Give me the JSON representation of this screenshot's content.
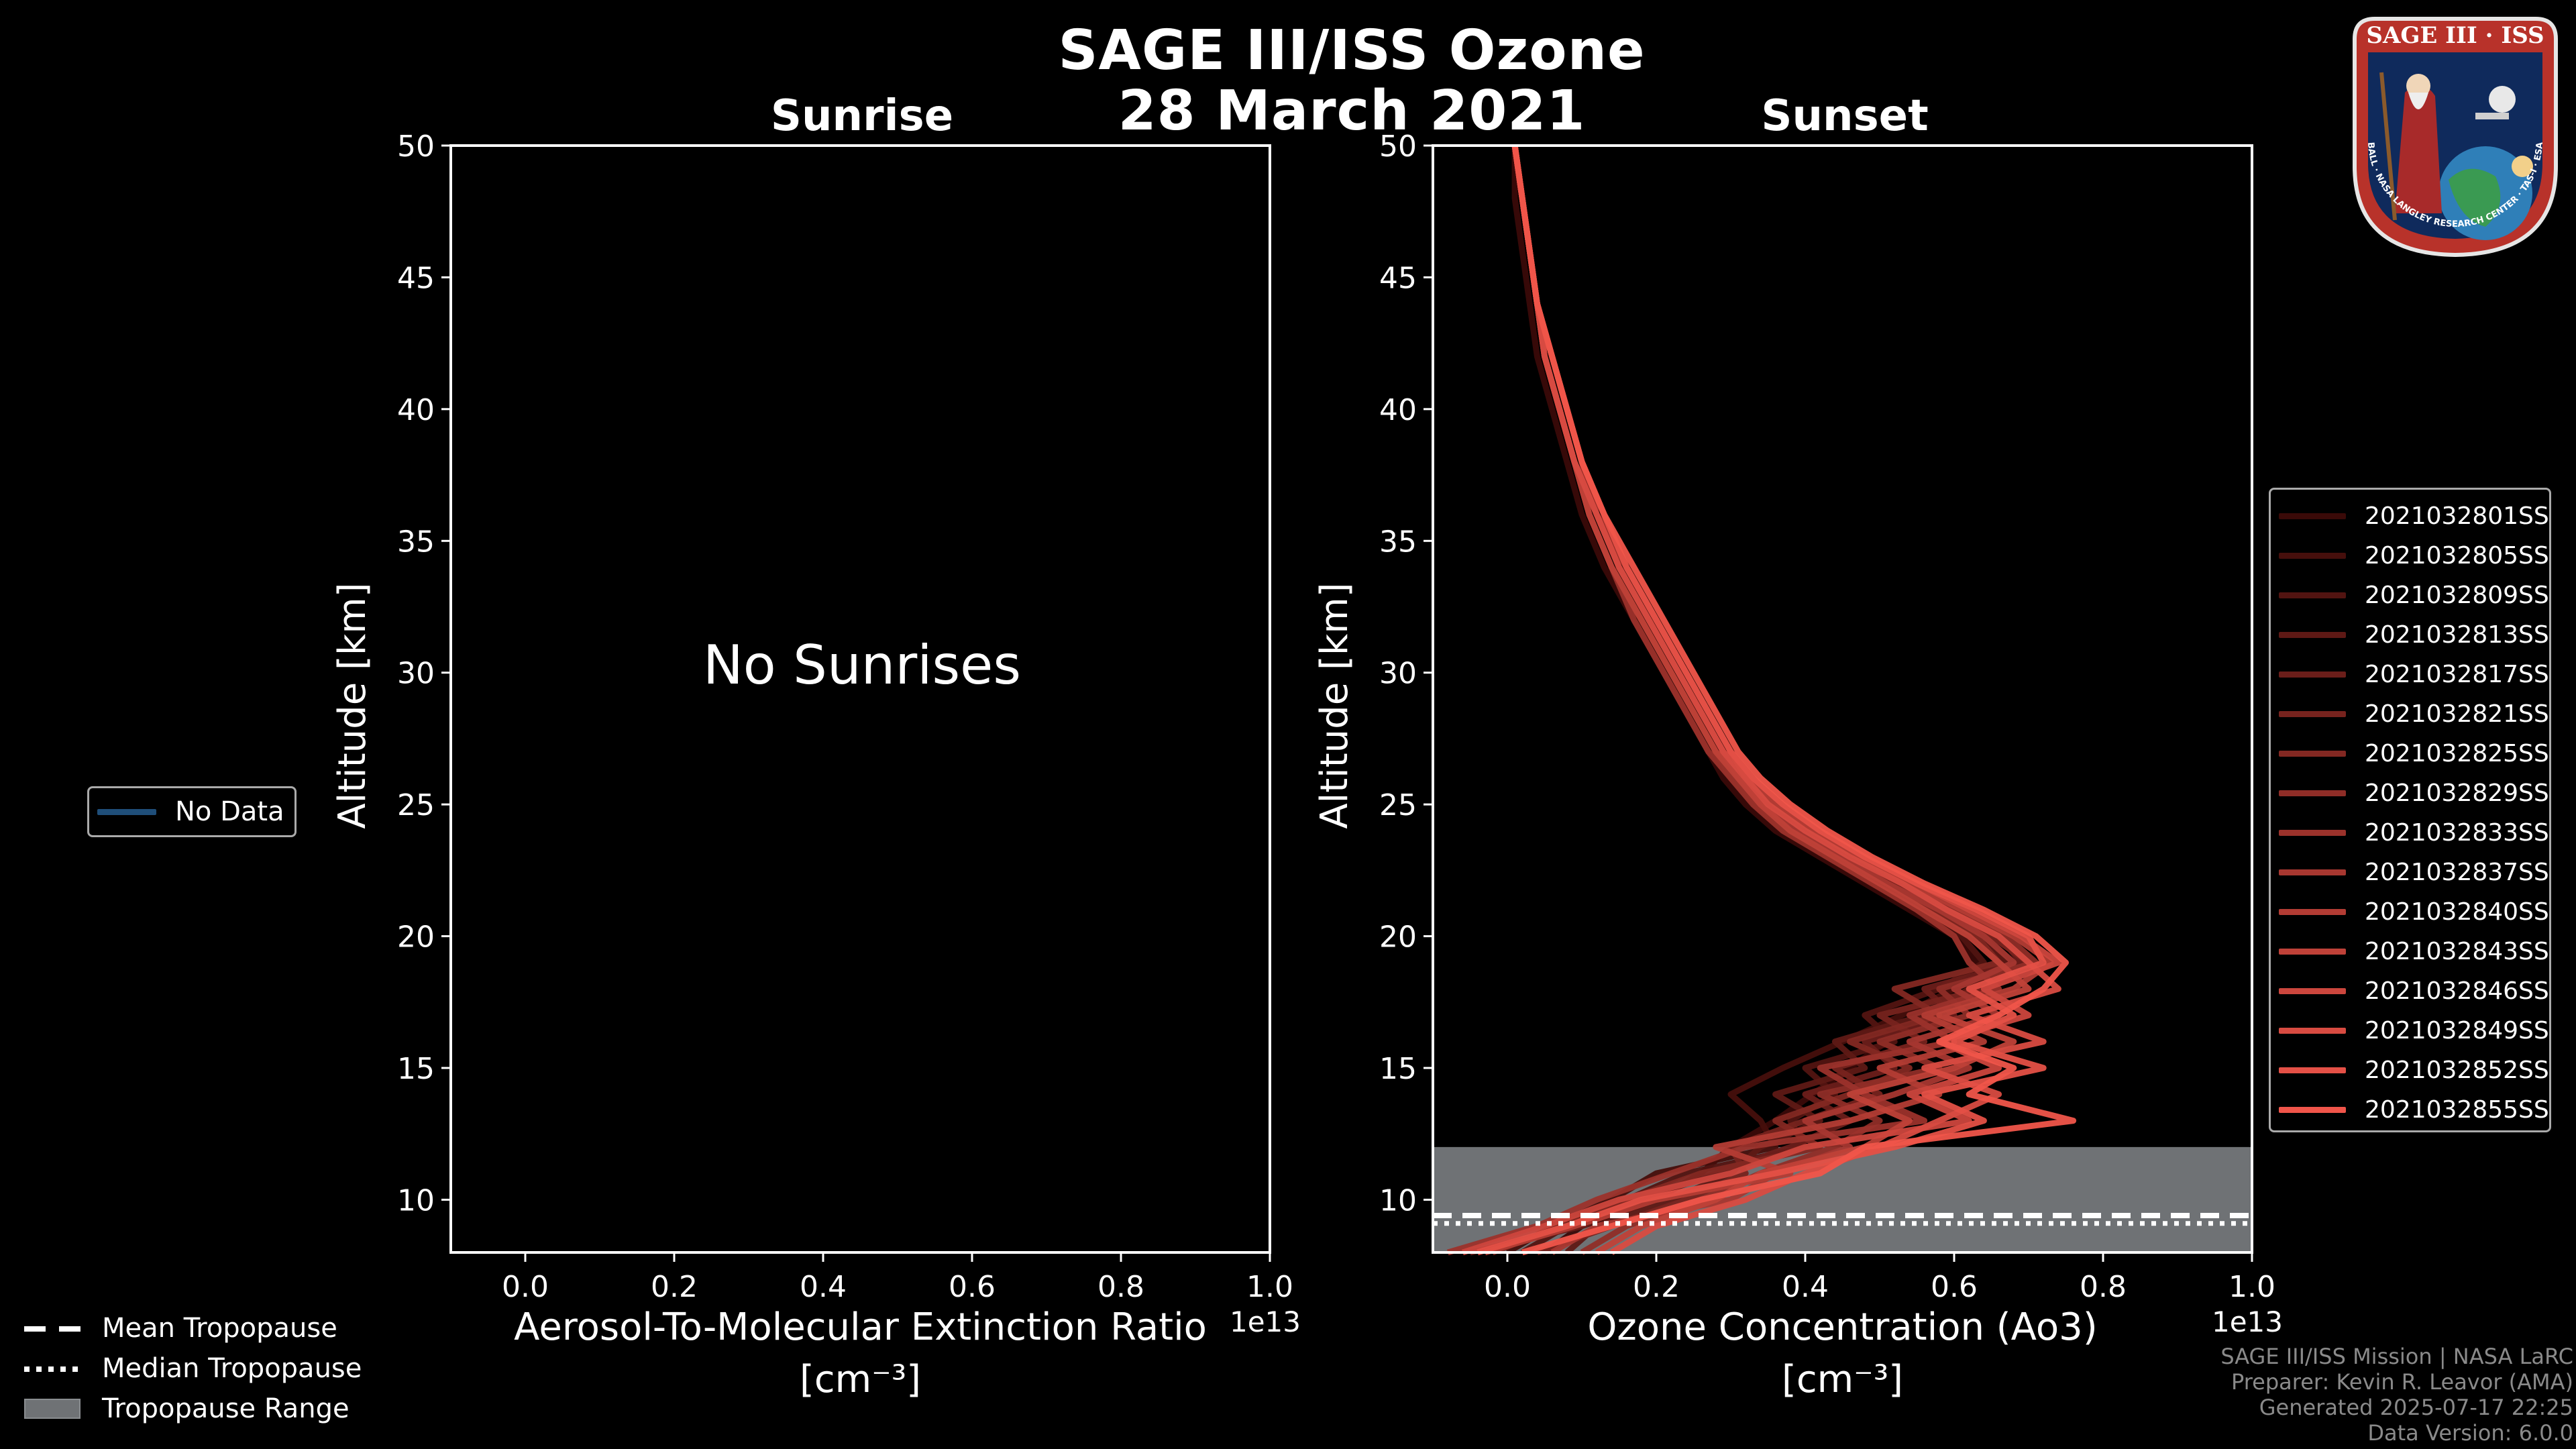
{
  "title_line1": "SAGE III/ISS Ozone",
  "title_line2": "28 March 2021",
  "logo": {
    "text_top": "SAGE III · ISS",
    "text_ring": "BALL · NASA LANGLEY RESEARCH CENTER · TAS-I · ESA"
  },
  "colors": {
    "background": "#000000",
    "tropopause_range": "#6f7275",
    "no_data_line": "#1f4e79",
    "series_dark": "#3a0a08",
    "series_light": "#f0554a"
  },
  "chart_data": [
    {
      "type": "line",
      "title": "Sunrise",
      "xlabel_line1": "Aerosol-To-Molecular Extinction Ratio",
      "xlabel_line2": "[cm⁻³]",
      "ylabel": "Altitude [km]",
      "xlim": [
        -0.1,
        1.0
      ],
      "ylim": [
        8,
        50
      ],
      "xticks": [
        "0.0",
        "0.2",
        "0.4",
        "0.6",
        "0.8",
        "1.0"
      ],
      "yticks": [
        "10",
        "15",
        "20",
        "25",
        "30",
        "35",
        "40",
        "45",
        "50"
      ],
      "offset_text": "1e13",
      "annotation": "No Sunrises",
      "legend": [
        "No Data"
      ],
      "series": []
    },
    {
      "type": "line",
      "title": "Sunset",
      "xlabel_line1": "Ozone Concentration (Ao3)",
      "xlabel_line2": "[cm⁻³]",
      "ylabel": "Altitude [km]",
      "xlim": [
        -0.1,
        1.0
      ],
      "ylim": [
        8,
        50
      ],
      "xticks": [
        "0.0",
        "0.2",
        "0.4",
        "0.6",
        "0.8",
        "1.0"
      ],
      "yticks": [
        "10",
        "15",
        "20",
        "25",
        "30",
        "35",
        "40",
        "45",
        "50"
      ],
      "offset_text": "1e13",
      "tropopause": {
        "range_km": [
          8,
          12
        ],
        "mean_km": 9.4,
        "median_km": 9.1
      },
      "altitudes_km": [
        8,
        9,
        10,
        11,
        12,
        13,
        14,
        15,
        16,
        17,
        18,
        19,
        20,
        21,
        22,
        23,
        24,
        25,
        26,
        27,
        28,
        29,
        30,
        32,
        34,
        36,
        38,
        40,
        42,
        44,
        46,
        48,
        50
      ],
      "series": [
        {
          "name": "2021032801SS",
          "values": [
            0.05,
            0.1,
            0.2,
            0.26,
            0.3,
            0.36,
            0.41,
            0.46,
            0.51,
            0.57,
            0.63,
            0.63,
            0.6,
            0.54,
            0.48,
            0.42,
            0.36,
            0.32,
            0.29,
            0.27,
            0.25,
            0.23,
            0.21,
            0.17,
            0.13,
            0.1,
            0.08,
            0.06,
            0.04,
            0.03,
            0.02,
            0.01,
            0.01
          ]
        },
        {
          "name": "2021032805SS",
          "values": [
            0.0,
            0.06,
            0.14,
            0.2,
            0.36,
            0.34,
            0.3,
            0.37,
            0.45,
            0.53,
            0.6,
            0.66,
            0.62,
            0.56,
            0.5,
            0.44,
            0.38,
            0.33,
            0.3,
            0.28,
            0.26,
            0.24,
            0.22,
            0.18,
            0.14,
            0.11,
            0.09,
            0.07,
            0.05,
            0.04,
            0.03,
            0.02,
            0.01
          ]
        },
        {
          "name": "2021032809SS",
          "values": [
            0.02,
            0.08,
            0.16,
            0.24,
            0.4,
            0.38,
            0.44,
            0.4,
            0.52,
            0.48,
            0.58,
            0.64,
            0.61,
            0.55,
            0.49,
            0.43,
            0.37,
            0.33,
            0.3,
            0.28,
            0.26,
            0.24,
            0.22,
            0.18,
            0.14,
            0.11,
            0.09,
            0.07,
            0.05,
            0.04,
            0.03,
            0.02,
            0.01
          ]
        },
        {
          "name": "2021032813SS",
          "values": [
            0.08,
            0.12,
            0.22,
            0.3,
            0.34,
            0.42,
            0.36,
            0.48,
            0.44,
            0.56,
            0.62,
            0.67,
            0.64,
            0.58,
            0.51,
            0.45,
            0.39,
            0.34,
            0.31,
            0.29,
            0.27,
            0.25,
            0.23,
            0.19,
            0.15,
            0.12,
            0.09,
            0.07,
            0.05,
            0.04,
            0.03,
            0.02,
            0.01
          ]
        },
        {
          "name": "2021032817SS",
          "values": [
            -0.05,
            0.1,
            0.18,
            0.28,
            0.38,
            0.46,
            0.4,
            0.52,
            0.48,
            0.6,
            0.56,
            0.69,
            0.66,
            0.59,
            0.52,
            0.46,
            0.4,
            0.35,
            0.31,
            0.29,
            0.27,
            0.25,
            0.23,
            0.19,
            0.15,
            0.12,
            0.1,
            0.08,
            0.06,
            0.04,
            0.03,
            0.02,
            0.01
          ]
        },
        {
          "name": "2021032821SS",
          "values": [
            0.04,
            0.14,
            0.24,
            0.32,
            0.3,
            0.4,
            0.5,
            0.44,
            0.56,
            0.5,
            0.64,
            0.7,
            0.65,
            0.58,
            0.52,
            0.46,
            0.4,
            0.35,
            0.32,
            0.3,
            0.28,
            0.26,
            0.24,
            0.2,
            0.16,
            0.12,
            0.1,
            0.08,
            0.06,
            0.04,
            0.03,
            0.02,
            0.01
          ]
        },
        {
          "name": "2021032825SS",
          "values": [
            -0.02,
            0.07,
            0.16,
            0.26,
            0.42,
            0.36,
            0.46,
            0.54,
            0.46,
            0.58,
            0.52,
            0.66,
            0.63,
            0.57,
            0.51,
            0.44,
            0.38,
            0.34,
            0.31,
            0.28,
            0.26,
            0.24,
            0.22,
            0.18,
            0.14,
            0.11,
            0.09,
            0.07,
            0.05,
            0.04,
            0.03,
            0.02,
            0.01
          ]
        },
        {
          "name": "2021032829SS",
          "values": [
            0.1,
            0.16,
            0.26,
            0.34,
            0.44,
            0.5,
            0.42,
            0.58,
            0.5,
            0.62,
            0.58,
            0.71,
            0.67,
            0.6,
            0.53,
            0.47,
            0.41,
            0.36,
            0.32,
            0.3,
            0.28,
            0.26,
            0.24,
            0.2,
            0.16,
            0.12,
            0.1,
            0.08,
            0.06,
            0.04,
            0.03,
            0.02,
            0.01
          ]
        },
        {
          "name": "2021032833SS",
          "values": [
            -0.08,
            0.04,
            0.12,
            0.22,
            0.32,
            0.56,
            0.48,
            0.42,
            0.6,
            0.54,
            0.66,
            0.62,
            0.6,
            0.55,
            0.49,
            0.43,
            0.37,
            0.33,
            0.3,
            0.27,
            0.25,
            0.23,
            0.21,
            0.17,
            0.14,
            0.11,
            0.09,
            0.07,
            0.05,
            0.04,
            0.03,
            0.02,
            0.01
          ]
        },
        {
          "name": "2021032837SS",
          "values": [
            0.06,
            0.12,
            0.3,
            0.36,
            0.46,
            0.4,
            0.52,
            0.62,
            0.54,
            0.66,
            0.6,
            0.68,
            0.64,
            0.58,
            0.51,
            0.45,
            0.39,
            0.34,
            0.31,
            0.29,
            0.27,
            0.25,
            0.23,
            0.19,
            0.15,
            0.12,
            0.09,
            0.07,
            0.05,
            0.04,
            0.03,
            0.02,
            0.01
          ]
        },
        {
          "name": "2021032840SS",
          "values": [
            -0.03,
            0.09,
            0.2,
            0.38,
            0.28,
            0.46,
            0.58,
            0.5,
            0.64,
            0.56,
            0.68,
            0.73,
            0.68,
            0.61,
            0.54,
            0.47,
            0.41,
            0.36,
            0.32,
            0.3,
            0.28,
            0.26,
            0.24,
            0.2,
            0.16,
            0.13,
            0.1,
            0.08,
            0.06,
            0.04,
            0.03,
            0.02,
            0.01
          ]
        },
        {
          "name": "2021032843SS",
          "values": [
            0.12,
            0.18,
            0.28,
            0.34,
            0.48,
            0.54,
            0.46,
            0.6,
            0.68,
            0.58,
            0.7,
            0.66,
            0.62,
            0.56,
            0.5,
            0.44,
            0.38,
            0.34,
            0.31,
            0.28,
            0.26,
            0.24,
            0.22,
            0.18,
            0.14,
            0.11,
            0.09,
            0.07,
            0.05,
            0.04,
            0.03,
            0.02,
            0.01
          ]
        },
        {
          "name": "2021032846SS",
          "values": [
            -0.06,
            0.05,
            0.15,
            0.3,
            0.4,
            0.62,
            0.54,
            0.66,
            0.58,
            0.7,
            0.64,
            0.74,
            0.69,
            0.62,
            0.55,
            0.48,
            0.42,
            0.37,
            0.33,
            0.3,
            0.28,
            0.26,
            0.24,
            0.2,
            0.16,
            0.13,
            0.1,
            0.08,
            0.06,
            0.04,
            0.03,
            0.02,
            0.01
          ]
        },
        {
          "name": "2021032849SS",
          "values": [
            0.14,
            0.2,
            0.32,
            0.4,
            0.5,
            0.58,
            0.66,
            0.56,
            0.72,
            0.62,
            0.74,
            0.7,
            0.66,
            0.59,
            0.53,
            0.46,
            0.4,
            0.35,
            0.32,
            0.29,
            0.27,
            0.25,
            0.23,
            0.19,
            0.15,
            0.12,
            0.09,
            0.07,
            0.05,
            0.04,
            0.03,
            0.02,
            0.01
          ]
        },
        {
          "name": "2021032852SS",
          "values": [
            -0.04,
            0.08,
            0.18,
            0.36,
            0.52,
            0.64,
            0.56,
            0.72,
            0.6,
            0.68,
            0.62,
            0.72,
            0.7,
            0.63,
            0.55,
            0.48,
            0.42,
            0.37,
            0.33,
            0.3,
            0.28,
            0.26,
            0.24,
            0.2,
            0.16,
            0.13,
            0.1,
            0.08,
            0.06,
            0.04,
            0.03,
            0.02,
            0.01
          ]
        },
        {
          "name": "2021032855SS",
          "values": [
            0.02,
            0.14,
            0.26,
            0.42,
            0.48,
            0.76,
            0.62,
            0.68,
            0.58,
            0.66,
            0.72,
            0.75,
            0.71,
            0.64,
            0.56,
            0.49,
            0.43,
            0.38,
            0.34,
            0.31,
            0.29,
            0.27,
            0.25,
            0.21,
            0.17,
            0.13,
            0.1,
            0.08,
            0.06,
            0.04,
            0.03,
            0.02,
            0.01
          ]
        }
      ]
    }
  ],
  "tropopause_legend": [
    {
      "label": "Mean Tropopause",
      "style": "dashed"
    },
    {
      "label": "Median Tropopause",
      "style": "dotted"
    },
    {
      "label": "Tropopause Range",
      "style": "patch"
    }
  ],
  "credits": [
    "SAGE III/ISS Mission | NASA LaRC",
    "Preparer: Kevin R. Leavor (AMA)",
    "Generated 2025-07-17 22:25",
    "Data Version: 6.0.0"
  ]
}
